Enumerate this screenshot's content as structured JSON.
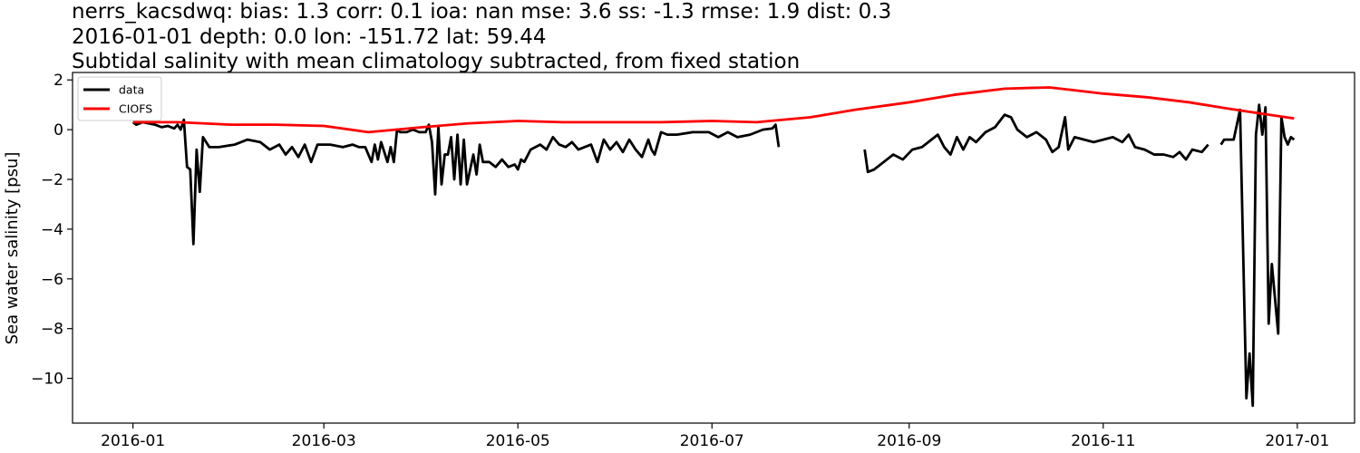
{
  "chart_data": {
    "type": "line",
    "title_lines": [
      "nerrs_kacsdwq: bias: 1.3  corr: 0.1  ioa: nan  mse: 3.6  ss: -1.3  rmse: 1.9  dist: 0.3",
      "2016-01-01 depth: 0.0 lon: -151.72 lat: 59.44",
      "Subtidal salinity with mean climatology subtracted, from fixed station"
    ],
    "xlabel": "",
    "ylabel": "Sea water salinity [psu]",
    "xlim": [
      "2015-12-13",
      "2017-01-19"
    ],
    "ylim": [
      -11.8,
      2.3
    ],
    "x_ticks": [
      "2016-01-01",
      "2016-03-01",
      "2016-05-01",
      "2016-07-01",
      "2016-09-01",
      "2016-11-01",
      "2017-01-01"
    ],
    "x_tick_labels": [
      "2016-01",
      "2016-03",
      "2016-05",
      "2016-07",
      "2016-09",
      "2016-11",
      "2017-01"
    ],
    "y_ticks": [
      2,
      0,
      -2,
      -4,
      -6,
      -8,
      -10
    ],
    "y_tick_labels": [
      "2",
      "0",
      "−2",
      "−4",
      "−6",
      "−8",
      "−10"
    ],
    "grid": false,
    "legend": {
      "position": "top-left"
    },
    "series": [
      {
        "name": "data",
        "color": "#000000",
        "segments": [
          [
            [
              "2016-01-01",
              0.3
            ],
            [
              "2016-01-02",
              0.2
            ],
            [
              "2016-01-04",
              0.3
            ],
            [
              "2016-01-06",
              0.25
            ],
            [
              "2016-01-08",
              0.2
            ],
            [
              "2016-01-10",
              0.1
            ],
            [
              "2016-01-12",
              0.15
            ],
            [
              "2016-01-14",
              0.05
            ],
            [
              "2016-01-15",
              0.2
            ],
            [
              "2016-01-16",
              0.0
            ],
            [
              "2016-01-17",
              0.4
            ],
            [
              "2016-01-18",
              -1.5
            ],
            [
              "2016-01-19",
              -1.6
            ],
            [
              "2016-01-20",
              -4.6
            ],
            [
              "2016-01-21",
              -0.8
            ],
            [
              "2016-01-22",
              -2.5
            ],
            [
              "2016-01-23",
              -0.3
            ],
            [
              "2016-01-25",
              -0.7
            ],
            [
              "2016-01-28",
              -0.7
            ],
            [
              "2016-02-02",
              -0.6
            ],
            [
              "2016-02-06",
              -0.4
            ],
            [
              "2016-02-10",
              -0.5
            ],
            [
              "2016-02-13",
              -0.8
            ],
            [
              "2016-02-16",
              -0.6
            ],
            [
              "2016-02-18",
              -1.0
            ],
            [
              "2016-02-20",
              -0.7
            ],
            [
              "2016-02-22",
              -1.1
            ],
            [
              "2016-02-24",
              -0.6
            ],
            [
              "2016-02-26",
              -1.3
            ],
            [
              "2016-02-28",
              -0.6
            ],
            [
              "2016-03-03",
              -0.6
            ],
            [
              "2016-03-07",
              -0.7
            ],
            [
              "2016-03-10",
              -0.6
            ],
            [
              "2016-03-12",
              -0.7
            ],
            [
              "2016-03-14",
              -0.7
            ],
            [
              "2016-03-16",
              -1.3
            ],
            [
              "2016-03-17",
              -0.6
            ],
            [
              "2016-03-18",
              -1.2
            ],
            [
              "2016-03-19",
              -0.5
            ],
            [
              "2016-03-21",
              -1.3
            ],
            [
              "2016-03-22",
              -0.7
            ],
            [
              "2016-03-23",
              -1.3
            ],
            [
              "2016-03-24",
              0.0
            ],
            [
              "2016-03-25",
              -0.1
            ],
            [
              "2016-03-27",
              -0.1
            ],
            [
              "2016-03-29",
              0.0
            ],
            [
              "2016-03-31",
              -0.1
            ],
            [
              "2016-04-02",
              -0.1
            ],
            [
              "2016-04-03",
              0.2
            ],
            [
              "2016-04-04",
              -0.5
            ],
            [
              "2016-04-05",
              -2.6
            ],
            [
              "2016-04-06",
              0.1
            ],
            [
              "2016-04-07",
              -2.2
            ],
            [
              "2016-04-08",
              -1.0
            ],
            [
              "2016-04-09",
              -1.0
            ],
            [
              "2016-04-10",
              -0.3
            ],
            [
              "2016-04-11",
              -2.0
            ],
            [
              "2016-04-12",
              -0.2
            ],
            [
              "2016-04-13",
              -2.2
            ],
            [
              "2016-04-14",
              -0.4
            ],
            [
              "2016-04-15",
              -2.2
            ],
            [
              "2016-04-17",
              -1.0
            ],
            [
              "2016-04-18",
              -1.8
            ],
            [
              "2016-04-19",
              -0.6
            ],
            [
              "2016-04-20",
              -1.3
            ],
            [
              "2016-04-22",
              -1.3
            ],
            [
              "2016-04-24",
              -1.5
            ],
            [
              "2016-04-26",
              -1.2
            ],
            [
              "2016-04-28",
              -1.5
            ],
            [
              "2016-04-30",
              -1.4
            ],
            [
              "2016-05-01",
              -1.6
            ],
            [
              "2016-05-02",
              -1.2
            ],
            [
              "2016-05-03",
              -1.3
            ],
            [
              "2016-05-05",
              -0.8
            ],
            [
              "2016-05-08",
              -0.6
            ],
            [
              "2016-05-10",
              -0.8
            ],
            [
              "2016-05-12",
              -0.3
            ],
            [
              "2016-05-14",
              -0.6
            ],
            [
              "2016-05-16",
              -0.7
            ],
            [
              "2016-05-18",
              -0.5
            ],
            [
              "2016-05-20",
              -0.8
            ],
            [
              "2016-05-24",
              -0.6
            ],
            [
              "2016-05-26",
              -1.3
            ],
            [
              "2016-05-28",
              -0.4
            ],
            [
              "2016-05-30",
              -0.8
            ],
            [
              "2016-06-01",
              -0.5
            ],
            [
              "2016-06-03",
              -0.9
            ],
            [
              "2016-06-05",
              -0.4
            ],
            [
              "2016-06-07",
              -0.8
            ],
            [
              "2016-06-09",
              -1.1
            ],
            [
              "2016-06-11",
              -0.4
            ],
            [
              "2016-06-12",
              -0.8
            ],
            [
              "2016-06-13",
              -1.0
            ],
            [
              "2016-06-15",
              -0.1
            ],
            [
              "2016-06-17",
              -0.2
            ],
            [
              "2016-06-20",
              -0.2
            ],
            [
              "2016-06-25",
              -0.1
            ],
            [
              "2016-06-30",
              -0.1
            ],
            [
              "2016-07-03",
              -0.3
            ],
            [
              "2016-07-06",
              -0.1
            ],
            [
              "2016-07-09",
              -0.3
            ],
            [
              "2016-07-13",
              -0.2
            ],
            [
              "2016-07-17",
              0.0
            ],
            [
              "2016-07-20",
              0.05
            ],
            [
              "2016-07-21",
              0.2
            ],
            [
              "2016-07-22",
              -0.7
            ]
          ],
          [
            [
              "2016-08-18",
              -0.8
            ],
            [
              "2016-08-19",
              -1.7
            ],
            [
              "2016-08-21",
              -1.6
            ],
            [
              "2016-08-24",
              -1.3
            ],
            [
              "2016-08-27",
              -1.0
            ],
            [
              "2016-08-30",
              -1.2
            ],
            [
              "2016-09-02",
              -0.8
            ],
            [
              "2016-09-05",
              -0.7
            ],
            [
              "2016-09-08",
              -0.4
            ],
            [
              "2016-09-10",
              -0.2
            ],
            [
              "2016-09-12",
              -0.7
            ],
            [
              "2016-09-14",
              -1.0
            ],
            [
              "2016-09-16",
              -0.3
            ],
            [
              "2016-09-18",
              -0.8
            ],
            [
              "2016-09-20",
              -0.3
            ],
            [
              "2016-09-22",
              -0.5
            ],
            [
              "2016-09-25",
              -0.1
            ],
            [
              "2016-09-28",
              0.1
            ],
            [
              "2016-10-01",
              0.6
            ],
            [
              "2016-10-03",
              0.5
            ],
            [
              "2016-10-05",
              0.0
            ],
            [
              "2016-10-08",
              -0.3
            ],
            [
              "2016-10-11",
              -0.1
            ],
            [
              "2016-10-14",
              -0.4
            ],
            [
              "2016-10-16",
              -0.9
            ],
            [
              "2016-10-18",
              -0.7
            ],
            [
              "2016-10-20",
              0.5
            ],
            [
              "2016-10-21",
              -0.8
            ],
            [
              "2016-10-23",
              -0.3
            ],
            [
              "2016-10-26",
              -0.4
            ],
            [
              "2016-10-29",
              -0.5
            ],
            [
              "2016-11-01",
              -0.4
            ],
            [
              "2016-11-04",
              -0.3
            ],
            [
              "2016-11-07",
              -0.5
            ],
            [
              "2016-11-09",
              -0.2
            ],
            [
              "2016-11-11",
              -0.7
            ],
            [
              "2016-11-14",
              -0.8
            ],
            [
              "2016-11-17",
              -1.0
            ],
            [
              "2016-11-20",
              -1.0
            ],
            [
              "2016-11-23",
              -1.1
            ],
            [
              "2016-11-25",
              -0.9
            ],
            [
              "2016-11-27",
              -1.2
            ],
            [
              "2016-11-29",
              -0.8
            ],
            [
              "2016-12-02",
              -0.9
            ],
            [
              "2016-12-04",
              -0.6
            ]
          ],
          [
            [
              "2016-12-08",
              -0.6
            ],
            [
              "2016-12-09",
              -0.4
            ],
            [
              "2016-12-12",
              -0.4
            ],
            [
              "2016-12-13",
              0.2
            ],
            [
              "2016-12-14",
              0.8
            ],
            [
              "2016-12-16",
              -10.8
            ],
            [
              "2016-12-17",
              -9.0
            ],
            [
              "2016-12-18",
              -11.1
            ],
            [
              "2016-12-19",
              -0.2
            ],
            [
              "2016-12-20",
              1.0
            ],
            [
              "2016-12-21",
              -0.2
            ],
            [
              "2016-12-22",
              0.9
            ],
            [
              "2016-12-23",
              -7.8
            ],
            [
              "2016-12-24",
              -5.4
            ],
            [
              "2016-12-26",
              -8.2
            ],
            [
              "2016-12-27",
              0.5
            ],
            [
              "2016-12-28",
              -0.3
            ],
            [
              "2016-12-29",
              -0.6
            ],
            [
              "2016-12-30",
              -0.3
            ],
            [
              "2016-12-31",
              -0.4
            ]
          ]
        ]
      },
      {
        "name": "CIOFS",
        "color": "#ff0000",
        "segments": [
          [
            [
              "2016-01-01",
              0.3
            ],
            [
              "2016-01-15",
              0.3
            ],
            [
              "2016-02-01",
              0.2
            ],
            [
              "2016-02-15",
              0.2
            ],
            [
              "2016-03-01",
              0.15
            ],
            [
              "2016-03-15",
              -0.1
            ],
            [
              "2016-04-01",
              0.1
            ],
            [
              "2016-04-15",
              0.25
            ],
            [
              "2016-05-01",
              0.35
            ],
            [
              "2016-05-15",
              0.3
            ],
            [
              "2016-06-01",
              0.3
            ],
            [
              "2016-06-15",
              0.3
            ],
            [
              "2016-07-01",
              0.35
            ],
            [
              "2016-07-15",
              0.3
            ],
            [
              "2016-08-01",
              0.5
            ],
            [
              "2016-08-15",
              0.8
            ],
            [
              "2016-09-01",
              1.1
            ],
            [
              "2016-09-15",
              1.4
            ],
            [
              "2016-10-01",
              1.65
            ],
            [
              "2016-10-15",
              1.7
            ],
            [
              "2016-10-22",
              1.6
            ],
            [
              "2016-11-01",
              1.45
            ],
            [
              "2016-11-15",
              1.3
            ],
            [
              "2016-11-28",
              1.1
            ],
            [
              "2016-12-10",
              0.85
            ],
            [
              "2016-12-31",
              0.45
            ]
          ]
        ]
      }
    ]
  }
}
